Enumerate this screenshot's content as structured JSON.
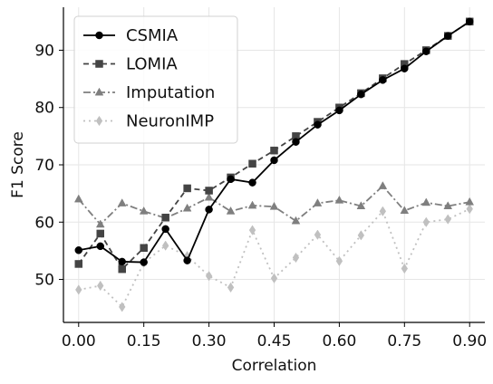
{
  "chart_data": {
    "type": "line",
    "xlabel": "Correlation",
    "ylabel": "F1 Score",
    "xlim": [
      -0.035,
      0.935
    ],
    "ylim": [
      42.5,
      97.5
    ],
    "grid": true,
    "legend_placement": "top-left",
    "x_ticks": [
      0.0,
      0.15,
      0.3,
      0.45,
      0.6,
      0.75,
      0.9
    ],
    "x_tick_labels": [
      "0.00",
      "0.15",
      "0.30",
      "0.45",
      "0.60",
      "0.75",
      "0.90"
    ],
    "y_ticks": [
      50,
      60,
      70,
      80,
      90
    ],
    "y_tick_labels": [
      "50",
      "60",
      "70",
      "80",
      "90"
    ],
    "x": [
      0.0,
      0.05,
      0.1,
      0.15,
      0.2,
      0.25,
      0.3,
      0.35,
      0.4,
      0.45,
      0.5,
      0.55,
      0.6,
      0.65,
      0.7,
      0.75,
      0.8,
      0.85,
      0.9
    ],
    "series": [
      {
        "name": "CSMIA",
        "color": "#000000",
        "line_style": "solid",
        "marker": "circle",
        "values": [
          55.1,
          55.8,
          53.1,
          53.0,
          58.8,
          53.3,
          62.2,
          67.5,
          66.9,
          70.8,
          74.0,
          77.0,
          79.5,
          82.3,
          84.8,
          86.8,
          89.8,
          92.5,
          95.0
        ]
      },
      {
        "name": "LOMIA",
        "color": "#444444",
        "line_style": "dashed",
        "marker": "square",
        "values": [
          52.7,
          58.0,
          51.8,
          55.5,
          60.8,
          65.9,
          65.5,
          67.8,
          70.2,
          72.5,
          75.0,
          77.5,
          80.0,
          82.5,
          85.1,
          87.6,
          90.0,
          92.5,
          95.0
        ]
      },
      {
        "name": "Imputation",
        "color": "#7f7f7f",
        "line_style": "dashdot",
        "marker": "triangle",
        "values": [
          64.0,
          59.6,
          63.3,
          61.9,
          60.7,
          62.4,
          64.3,
          61.9,
          62.9,
          62.7,
          60.2,
          63.3,
          63.8,
          62.8,
          66.3,
          62.0,
          63.4,
          62.8,
          63.5
        ]
      },
      {
        "name": "NeuronIMP",
        "color": "#c0c0c0",
        "line_style": "dotted",
        "marker": "diamond",
        "values": [
          48.2,
          48.9,
          45.2,
          52.9,
          55.9,
          54.1,
          50.6,
          48.6,
          58.6,
          50.2,
          53.8,
          57.8,
          53.2,
          57.7,
          61.9,
          51.9,
          60.0,
          60.5,
          62.3
        ]
      }
    ]
  }
}
